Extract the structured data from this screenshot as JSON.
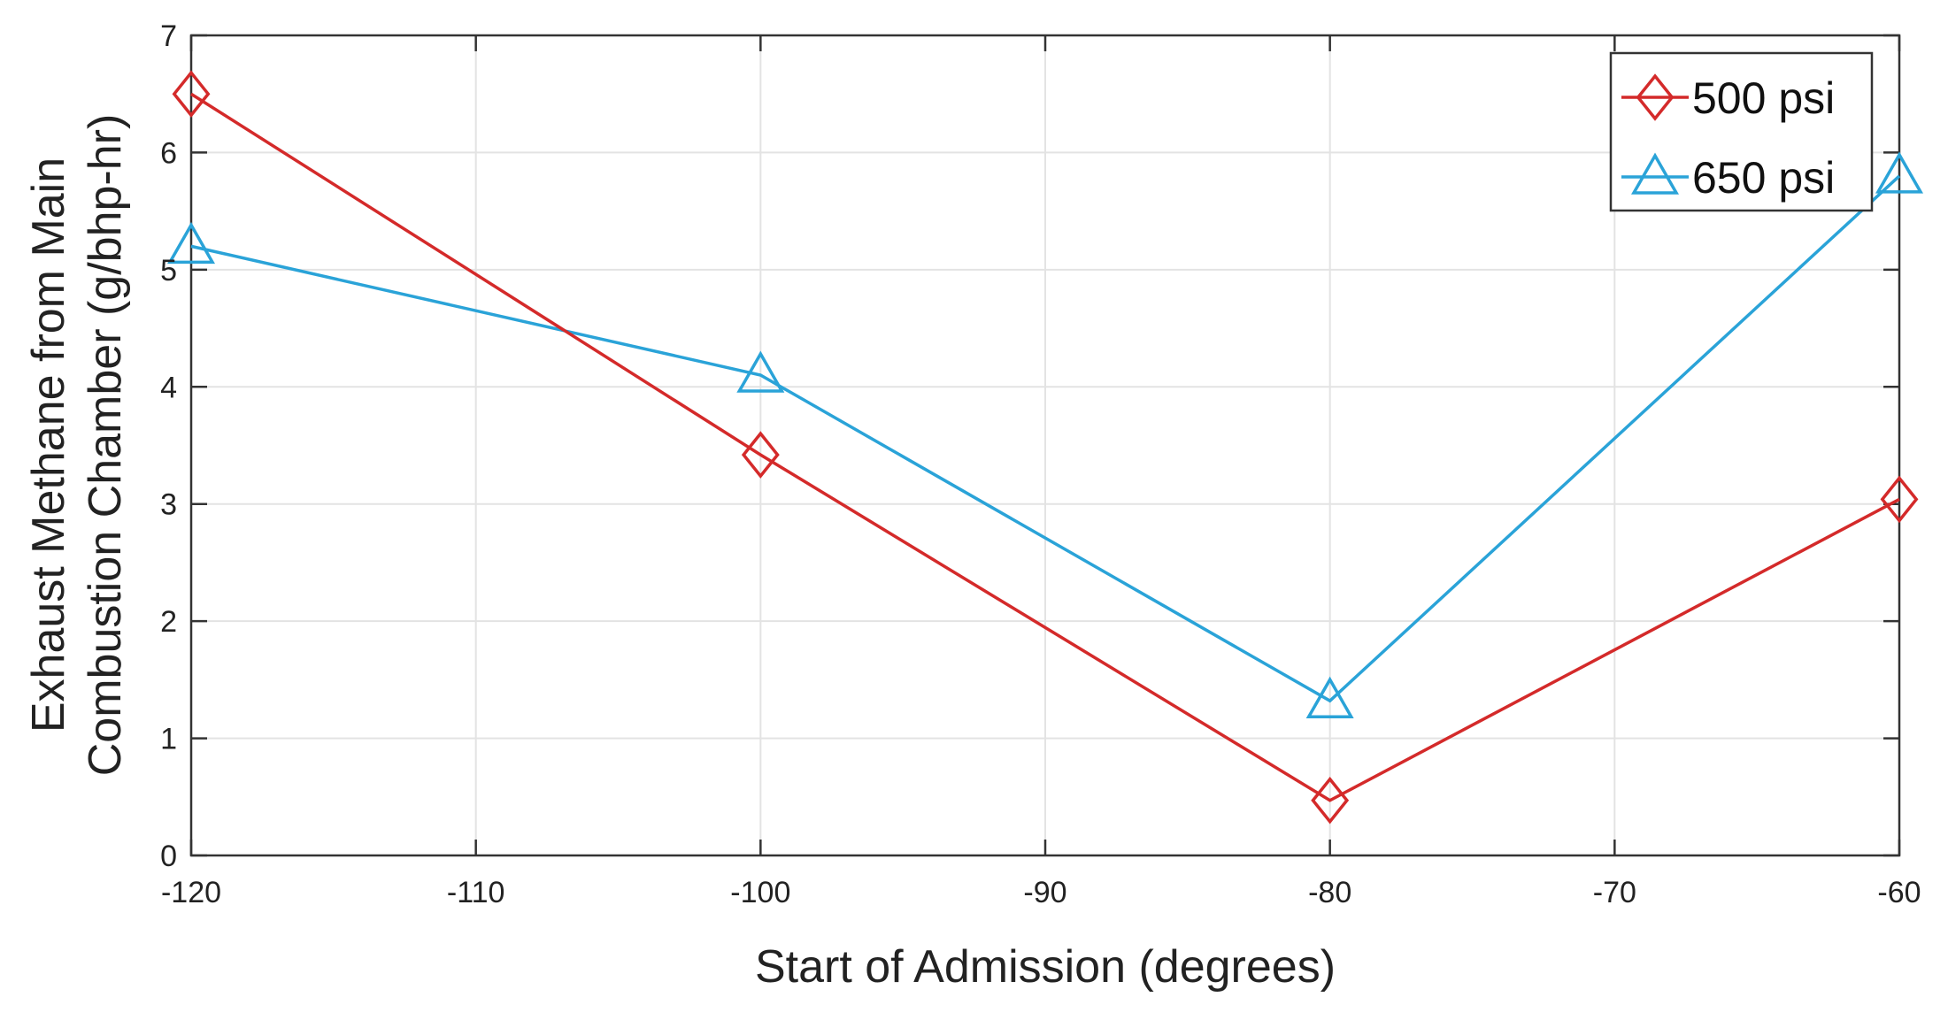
{
  "chart_data": {
    "type": "line",
    "title": "",
    "xlabel": "Start of Admission (degrees)",
    "ylabel_lines": [
      "Exhaust Methane from Main",
      "Combustion Chamber (g/bhp-hr)"
    ],
    "xlim": [
      -120,
      -60
    ],
    "ylim": [
      0,
      7
    ],
    "xticks": [
      -120,
      -110,
      -100,
      -90,
      -80,
      -70,
      -60
    ],
    "yticks": [
      0,
      1,
      2,
      3,
      4,
      5,
      6,
      7
    ],
    "grid": true,
    "legend_position": "top-right",
    "series": [
      {
        "name": "500 psi",
        "color": "#d42a2a",
        "marker": "diamond",
        "x": [
          -120,
          -100,
          -80,
          -60
        ],
        "y": [
          6.5,
          3.42,
          0.47,
          3.04
        ]
      },
      {
        "name": "650 psi",
        "color": "#2aa3d8",
        "marker": "triangle",
        "x": [
          -120,
          -100,
          -80,
          -60
        ],
        "y": [
          5.2,
          4.1,
          1.32,
          5.8
        ]
      }
    ]
  }
}
